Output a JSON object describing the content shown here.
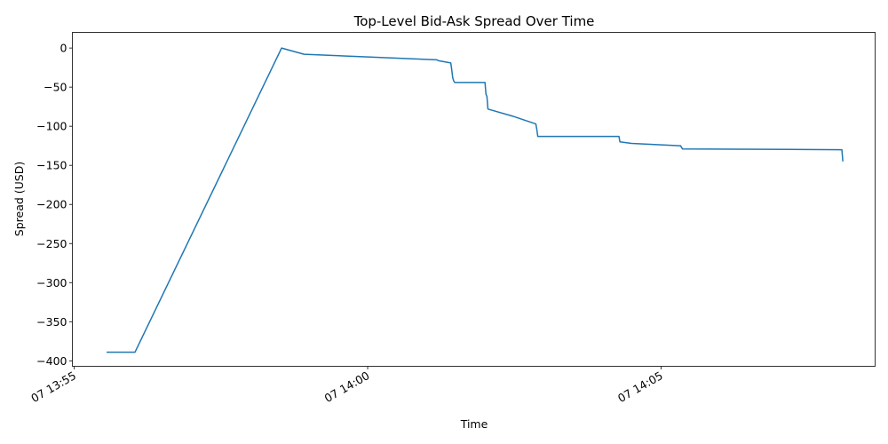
{
  "chart_data": {
    "type": "line",
    "title": "Top-Level Bid-Ask Spread Over Time",
    "xlabel": "Time",
    "ylabel": "Spread (USD)",
    "x_type": "datetime",
    "x_ticks": [
      {
        "label": "07 13:55",
        "time": "13:55:00"
      },
      {
        "label": "07 14:00",
        "time": "14:00:00"
      },
      {
        "label": "07 14:05",
        "time": "14:05:00"
      }
    ],
    "xlim": [
      "13:54:58",
      "14:08:39"
    ],
    "y_ticks": [
      0,
      -50,
      -100,
      -150,
      -200,
      -250,
      -300,
      -350,
      -400
    ],
    "ylim": [
      -407,
      20
    ],
    "grid": false,
    "color": "#1f77b4",
    "series": [
      {
        "x": [
          "13:55:33",
          "13:56:02",
          "13:58:32",
          "13:58:55",
          "14:01:11",
          "14:01:12",
          "14:01:25",
          "14:01:26",
          "14:01:27",
          "14:01:28",
          "14:01:29",
          "14:02:00",
          "14:02:01",
          "14:02:02",
          "14:02:03",
          "14:02:28",
          "14:02:52",
          "14:02:53",
          "14:02:54",
          "14:04:17",
          "14:04:18",
          "14:04:30",
          "14:05:20",
          "14:05:21",
          "14:05:22",
          "14:08:05",
          "14:08:06"
        ],
        "y": [
          -389,
          -389,
          0,
          -8,
          -15,
          -16,
          -19,
          -28,
          -38,
          -42,
          -44,
          -44,
          -59,
          -62,
          -78,
          -87,
          -97,
          -104,
          -113,
          -113,
          -120,
          -122,
          -125,
          -127,
          -129,
          -130,
          -145
        ]
      }
    ]
  }
}
